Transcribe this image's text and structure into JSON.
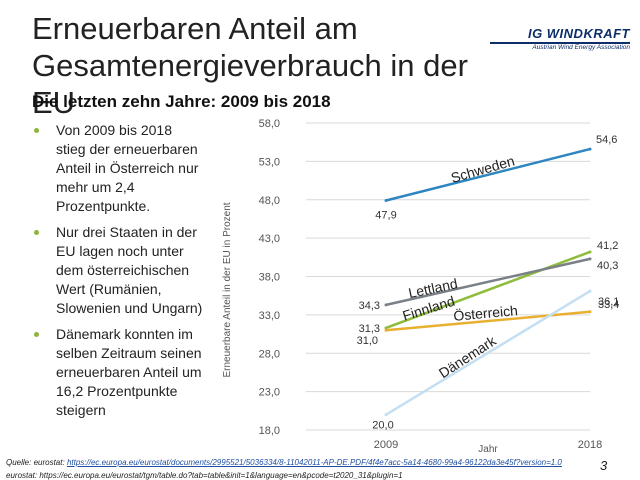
{
  "slide": {
    "title": "Erneuerbaren Anteil am Gesamtenergieverbrauch in der EU",
    "subtitle": "Die letzten zehn Jahre: 2009 bis 2018",
    "logo": {
      "main": "IG WINDKRAFT",
      "sub": "Austrian Wind Energy Association"
    },
    "bullets": [
      "Von 2009 bis 2018 stieg der erneuerbaren Anteil in Österreich nur mehr um 2,4 Prozentpunkte.",
      "Nur drei Staaten in der EU lagen noch unter dem österreichischen Wert (Rumänien, Slowenien und Ungarn)",
      "Dänemark konnten im selben Zeitraum seinen erneuerbaren Anteil um 16,2 Prozentpunkte steigern"
    ],
    "source_label": "Quelle: eurostat:",
    "source_link": "https://ec.europa.eu/eurostat/documents/2995521/5036334/8-11042011-AP-DE.PDF/4f4e7acc-5a14-4680-99a4-96122da3e45f?version=1.0",
    "source2": "eurostat: https://ec.europa.eu/eurostat/tgm/table.do?tab=table&init=1&language=en&pcode=t2020_31&plugin=1",
    "page_number": "3",
    "colors": {
      "bullet": "#8cb43c",
      "logo": "#0d2d6b",
      "link": "#1f4ea3"
    }
  },
  "chart_data": {
    "type": "line",
    "x": [
      "2009",
      "2018"
    ],
    "xlabel": "Jahr",
    "ylabel": "Erneuerbare Anteil in der EU in Prozent",
    "ylim": [
      18,
      58
    ],
    "yticks": [
      18,
      23,
      28,
      33,
      38,
      43,
      48,
      53,
      58
    ],
    "ytick_labels": [
      "18,0",
      "23,0",
      "28,0",
      "33,0",
      "38,0",
      "43,0",
      "48,0",
      "53,0",
      "58,0"
    ],
    "grid": true,
    "series": [
      {
        "name": "Schweden",
        "values": [
          47.9,
          54.6
        ],
        "labels": [
          "47,9",
          "54,6"
        ],
        "color": "#2e86c1"
      },
      {
        "name": "Finnland",
        "values": [
          31.3,
          41.2
        ],
        "labels": [
          "31,3",
          "41,2"
        ],
        "color": "#8fbc3c"
      },
      {
        "name": "Lettland",
        "values": [
          34.3,
          40.3
        ],
        "labels": [
          "34,3",
          "40,3"
        ],
        "color": "#7a8088"
      },
      {
        "name": "Österreich",
        "values": [
          31.0,
          33.4
        ],
        "labels": [
          "31,0",
          "33,4"
        ],
        "color": "#e8b030"
      },
      {
        "name": "Dänemark",
        "values": [
          20.0,
          36.1
        ],
        "labels": [
          "20,0",
          "36,1"
        ],
        "color": "#c5dff2"
      }
    ]
  }
}
